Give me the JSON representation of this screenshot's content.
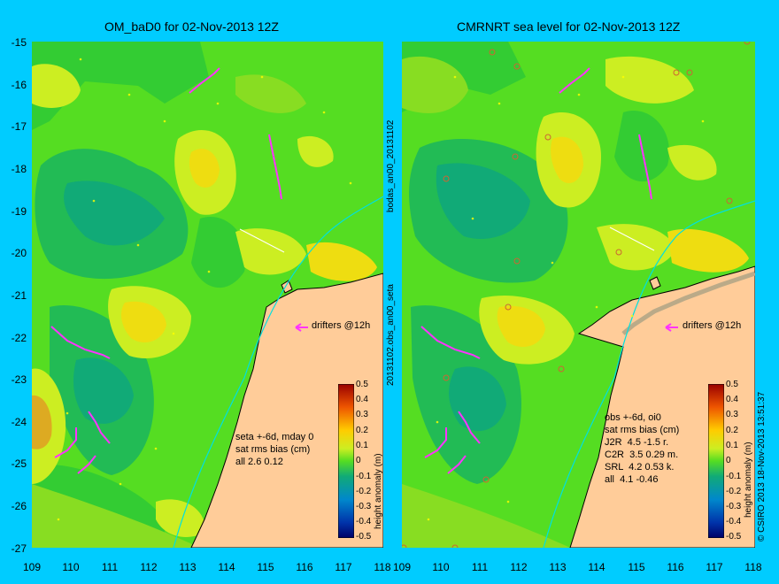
{
  "left_panel": {
    "title": "OM_baD0 for 02-Nov-2013 12Z",
    "drifters_label": "drifters @12h",
    "stats": [
      "seta +-6d, mday 0",
      "sat rms bias (cm)",
      "all 2.6 0.12"
    ]
  },
  "right_panel": {
    "title": "CMRNRT sea level  for 02-Nov-2013 12Z",
    "drifters_label": "drifters @12h",
    "stats": [
      "obs +-6d, oi0",
      "sat rms bias (cm)",
      "J2R  4.5 -1.5 r.",
      "C2R  3.5 0.29 m.",
      "SRL  4.2 0.53 k.",
      "all  4.1 -0.46"
    ]
  },
  "between_labels": {
    "upper": "bodas_an00_20131102",
    "lower": "20131102.obs_an00_seta"
  },
  "colorbar": {
    "label": "height anomaly (m)",
    "ticks": [
      "0.5",
      "0.4",
      "0.3",
      "0.2",
      "0.1",
      "0",
      "-0.1",
      "-0.2",
      "-0.3",
      "-0.4",
      "-0.5"
    ]
  },
  "credit": "© CSIRO 2013  18-Nov-2013 13:51:37",
  "axes": {
    "y_ticks": [
      "-15",
      "-16",
      "-17",
      "-18",
      "-19",
      "-20",
      "-21",
      "-22",
      "-23",
      "-24",
      "-25",
      "-26",
      "-27"
    ],
    "left_x_ticks": [
      "109",
      "110",
      "111",
      "112",
      "113",
      "114",
      "115",
      "116",
      "117",
      "118"
    ],
    "right_x_ticks": [
      "109",
      "110",
      "111",
      "112",
      "113",
      "114",
      "115",
      "116",
      "117",
      "118"
    ]
  },
  "colors": {
    "background": "#00ccff",
    "land": "#ffcc99",
    "drifter": "#ff33ff",
    "contour_line": "#00e0e0"
  }
}
